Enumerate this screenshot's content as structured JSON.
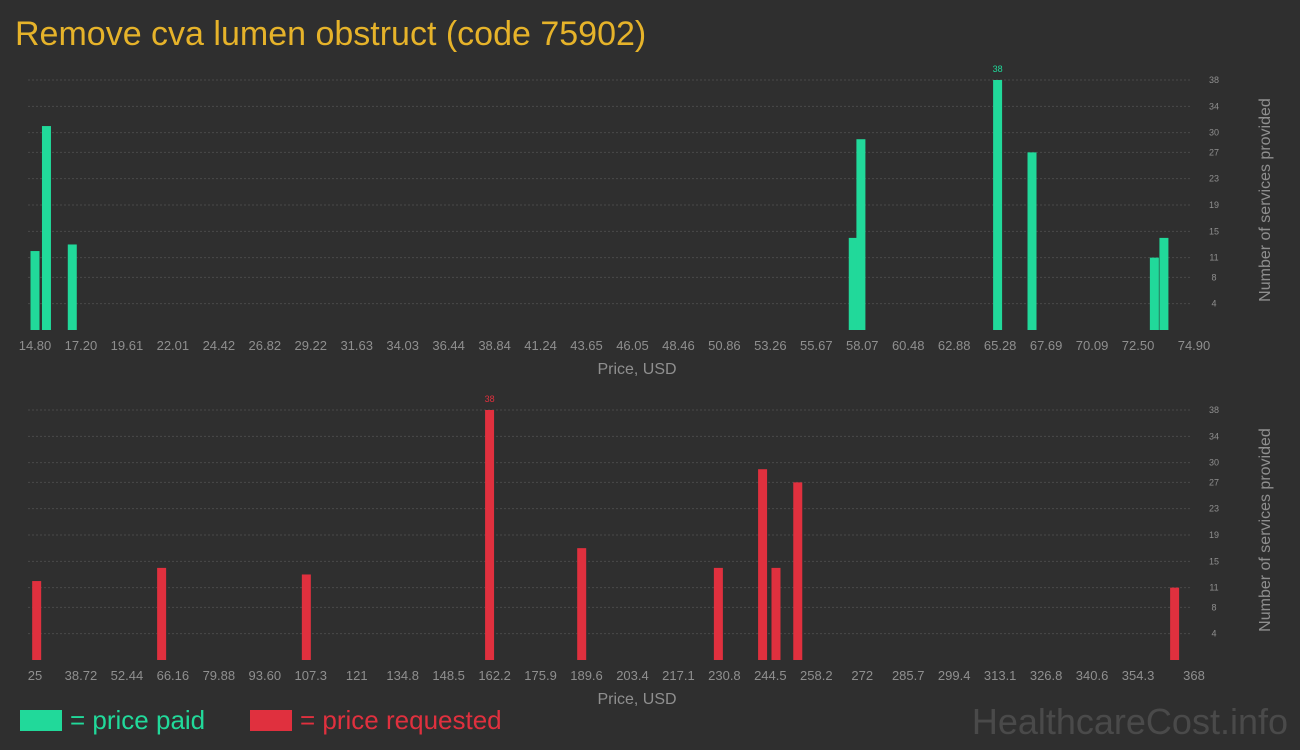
{
  "title": "Remove cva lumen obstruct (code 75902)",
  "watermark": "HealthcareCost.info",
  "colors": {
    "paid": "#21d99a",
    "requested": "#e0303e",
    "title": "#e6b32a"
  },
  "legend": [
    {
      "label": "= price paid",
      "color": "#21d99a"
    },
    {
      "label": "= price requested",
      "color": "#e0303e"
    }
  ],
  "chart_data": [
    {
      "type": "bar",
      "name": "paid",
      "xlabel": "Price, USD",
      "ylabel": "Number of services provided",
      "xlim": [
        14.8,
        74.9
      ],
      "ylim": [
        0,
        38
      ],
      "x_ticks": [
        "14.80",
        "17.20",
        "19.61",
        "22.01",
        "24.42",
        "26.82",
        "29.22",
        "31.63",
        "34.03",
        "36.44",
        "38.84",
        "41.24",
        "43.65",
        "46.05",
        "48.46",
        "50.86",
        "53.26",
        "55.67",
        "58.07",
        "60.48",
        "62.88",
        "65.28",
        "67.69",
        "70.09",
        "72.50",
        "74.90"
      ],
      "y_ticks": [
        4,
        8,
        11,
        15,
        19,
        23,
        27,
        30,
        34,
        38
      ],
      "bars": [
        {
          "x": 14.8,
          "y": 12
        },
        {
          "x": 15.4,
          "y": 31
        },
        {
          "x": 16.75,
          "y": 13
        },
        {
          "x": 57.6,
          "y": 14
        },
        {
          "x": 58.0,
          "y": 29
        },
        {
          "x": 65.15,
          "y": 38,
          "label": "38"
        },
        {
          "x": 66.95,
          "y": 27
        },
        {
          "x": 73.35,
          "y": 11
        },
        {
          "x": 73.85,
          "y": 14
        }
      ]
    },
    {
      "type": "bar",
      "name": "requested",
      "xlabel": "Price, USD",
      "ylabel": "Number of services provided",
      "xlim": [
        25,
        368
      ],
      "ylim": [
        0,
        38
      ],
      "x_ticks": [
        "25",
        "38.72",
        "52.44",
        "66.16",
        "79.88",
        "93.60",
        "107.3",
        "121",
        "134.8",
        "148.5",
        "162.2",
        "175.9",
        "189.6",
        "203.4",
        "217.1",
        "230.8",
        "244.5",
        "258.2",
        "272",
        "285.7",
        "299.4",
        "313.1",
        "326.8",
        "340.6",
        "354.3",
        "368"
      ],
      "y_ticks": [
        4,
        8,
        11,
        15,
        19,
        23,
        27,
        30,
        34,
        38
      ],
      "bars": [
        {
          "x": 25.5,
          "y": 12
        },
        {
          "x": 62.8,
          "y": 14
        },
        {
          "x": 106.0,
          "y": 13
        },
        {
          "x": 160.7,
          "y": 38,
          "label": "38"
        },
        {
          "x": 188.2,
          "y": 17
        },
        {
          "x": 229.0,
          "y": 14
        },
        {
          "x": 242.2,
          "y": 29
        },
        {
          "x": 246.2,
          "y": 14
        },
        {
          "x": 252.7,
          "y": 27
        },
        {
          "x": 365.2,
          "y": 11
        }
      ]
    }
  ]
}
